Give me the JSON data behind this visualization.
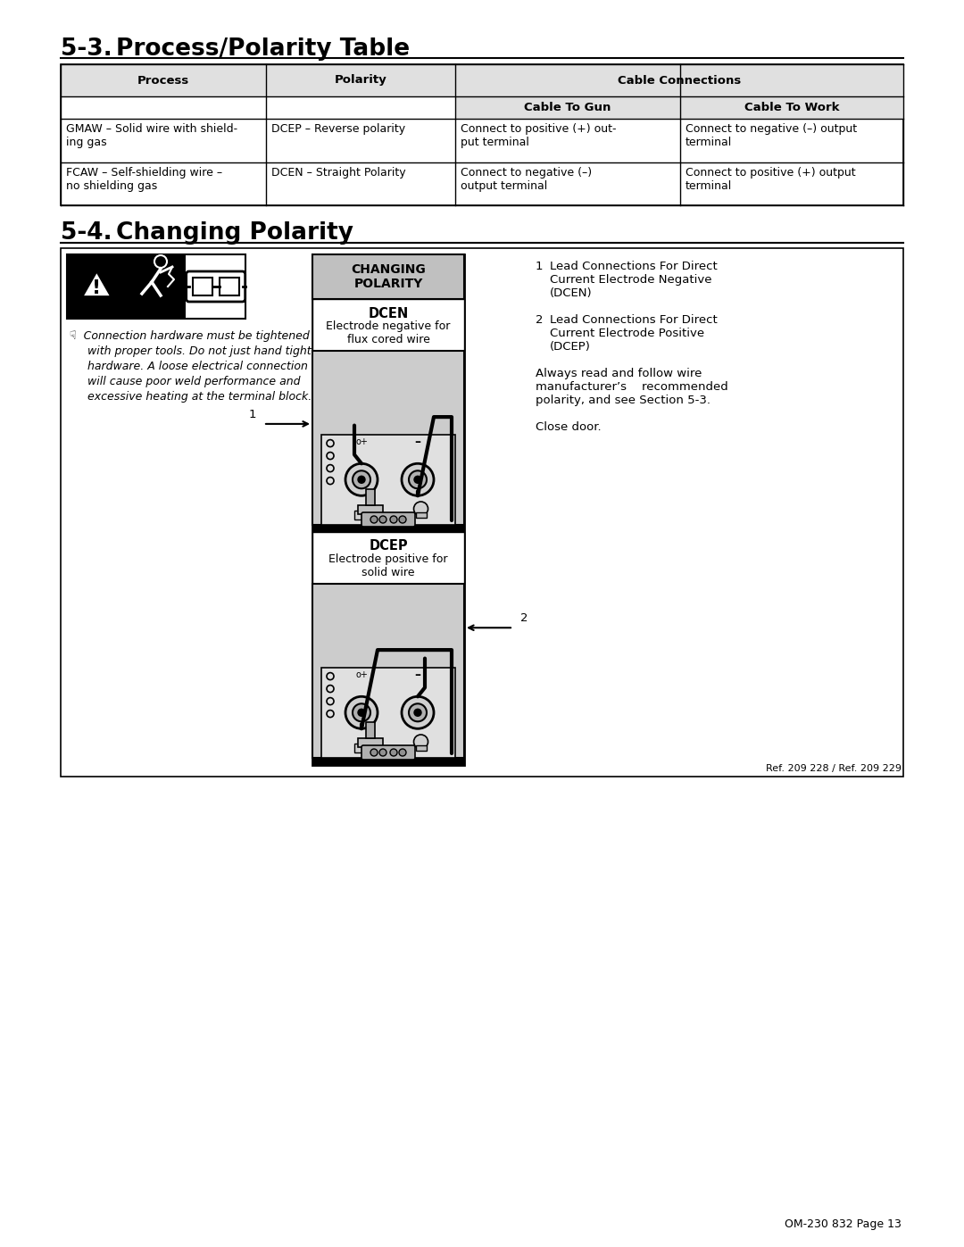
{
  "page_title_1": "5-3.",
  "page_title_1_text": "Process/Polarity Table",
  "page_title_2": "5-4.",
  "page_title_2_text": "Changing Polarity",
  "table_rows": [
    {
      "process": "GMAW – Solid wire with shield-\ning gas",
      "polarity": "DCEP – Reverse polarity",
      "cable_to_gun": "Connect to positive (+) out-\nput terminal",
      "cable_to_work": "Connect to negative (–) output\nterminal"
    },
    {
      "process": "FCAW – Self-shielding wire –\nno shielding gas",
      "polarity": "DCEN – Straight Polarity",
      "cable_to_gun": "Connect to negative (–)\noutput terminal",
      "cable_to_work": "Connect to positive (+) output\nterminal"
    }
  ],
  "diagram_title": "CHANGING\nPOLARITY",
  "dcen_label": "DCEN",
  "dcen_sub": "Electrode negative for\nflux cored wire",
  "dcep_label": "DCEP",
  "dcep_sub": "Electrode positive for\nsolid wire",
  "note1_text": "Lead Connections For Direct\nCurrent Electrode Negative\n(DCEN)",
  "note2_text": "Lead Connections For Direct\nCurrent Electrode Positive\n(DCEP)",
  "always_text": "Always read and follow wire\nmanufacturer’s    recommended\npolarity, and see Section 5-3.",
  "close_door": "Close door.",
  "ref_text": "Ref. 209 228 / Ref. 209 229",
  "page_num": "OM-230 832 Page 13",
  "bg_color": "#ffffff",
  "table_header_bg": "#e0e0e0",
  "diagram_header_bg": "#c0c0c0",
  "diagram_gray": "#cccccc"
}
